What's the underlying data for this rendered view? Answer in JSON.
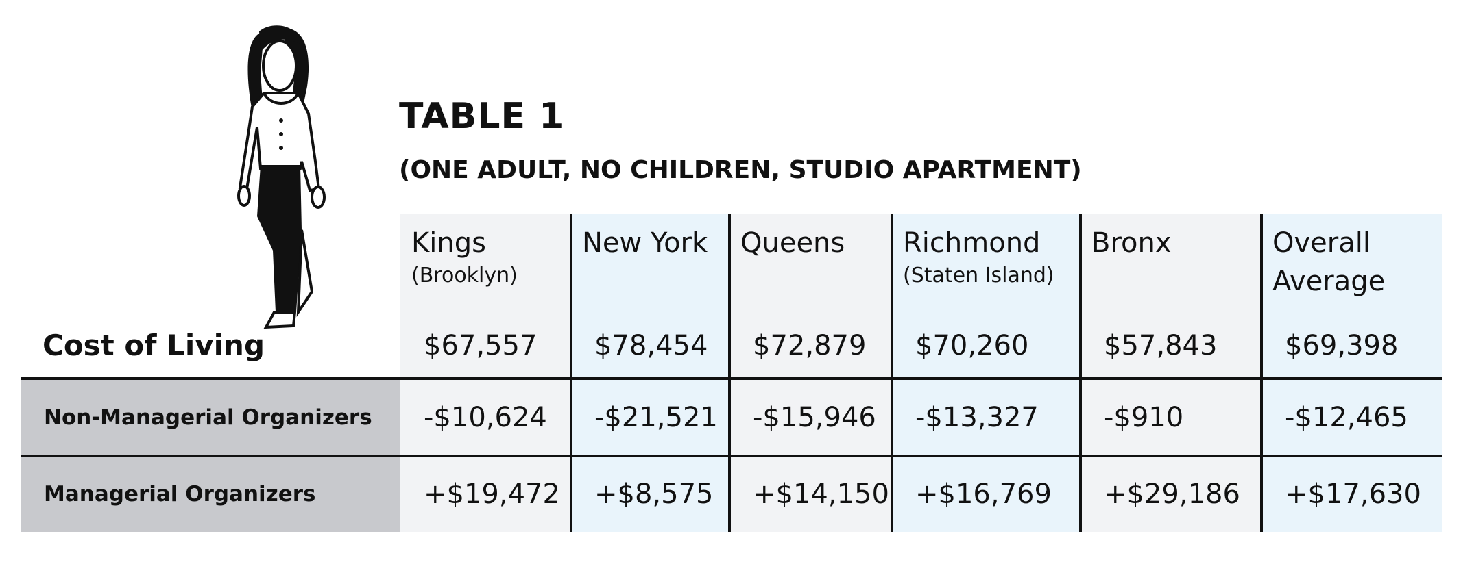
{
  "header": {
    "title": "TABLE 1",
    "subtitle": "(ONE ADULT, NO CHILDREN, STUDIO APARTMENT)"
  },
  "table": {
    "corner": "Cost of Living",
    "columns": [
      {
        "name": "Kings",
        "sub": "(Brooklyn)"
      },
      {
        "name": "New York"
      },
      {
        "name": "Queens"
      },
      {
        "name": "Richmond",
        "sub": "(Staten Island)"
      },
      {
        "name": "Bronx"
      },
      {
        "name": "Overall Average"
      }
    ],
    "cost_of_living": [
      "$67,557",
      "$78,454",
      "$72,879",
      "$70,260",
      "$57,843",
      "$69,398"
    ],
    "rows": [
      {
        "label": "Non-Managerial Organizers",
        "values": [
          "-$10,624",
          "-$21,521",
          "-$15,946",
          "-$13,327",
          "-$910",
          "-$12,465"
        ]
      },
      {
        "label": "Managerial Organizers",
        "values": [
          "+$19,472",
          "+$8,575",
          "+$14,150",
          "+$16,769",
          "+$29,186",
          "+$17,630"
        ]
      }
    ]
  }
}
